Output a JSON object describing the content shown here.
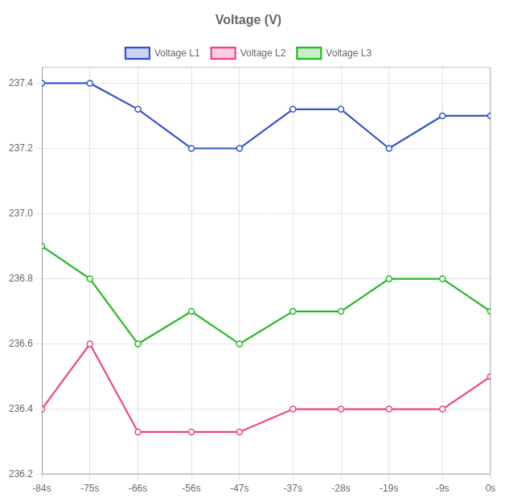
{
  "chart_data": {
    "type": "line",
    "title": "Voltage (V)",
    "x": [
      -84,
      -75,
      -66,
      -56,
      -47,
      -37,
      -28,
      -19,
      -9,
      0
    ],
    "xlim": [
      -84,
      0
    ],
    "xticks": [
      {
        "value": -84,
        "label": "-84s"
      },
      {
        "value": -75,
        "label": "-75s"
      },
      {
        "value": -66,
        "label": "-66s"
      },
      {
        "value": -56,
        "label": "-56s"
      },
      {
        "value": -47,
        "label": "-47s"
      },
      {
        "value": -37,
        "label": "-37s"
      },
      {
        "value": -28,
        "label": "-28s"
      },
      {
        "value": -19,
        "label": "-19s"
      },
      {
        "value": -9,
        "label": "-9s"
      },
      {
        "value": 0,
        "label": "0s"
      }
    ],
    "ylim": [
      236.2,
      237.45
    ],
    "yticks": [
      236.2,
      236.4,
      236.6,
      236.8,
      {
        "value": 237.0,
        "label": "237.0"
      },
      237.2,
      237.4
    ],
    "grid": true,
    "legend": "top",
    "marker": "circle",
    "series": [
      {
        "name": "Voltage L1",
        "color": "#3355cc",
        "values": [
          237.4,
          237.4,
          237.32,
          237.2,
          237.2,
          237.32,
          237.32,
          237.2,
          237.3,
          237.3
        ]
      },
      {
        "name": "Voltage L2",
        "color": "#ee4488",
        "values": [
          236.4,
          236.6,
          236.33,
          236.33,
          236.33,
          236.4,
          236.4,
          236.4,
          236.4,
          236.5
        ]
      },
      {
        "name": "Voltage L3",
        "color": "#22bb22",
        "values": [
          236.9,
          236.8,
          236.6,
          236.7,
          236.6,
          236.7,
          236.7,
          236.8,
          236.8,
          236.7
        ]
      }
    ]
  }
}
